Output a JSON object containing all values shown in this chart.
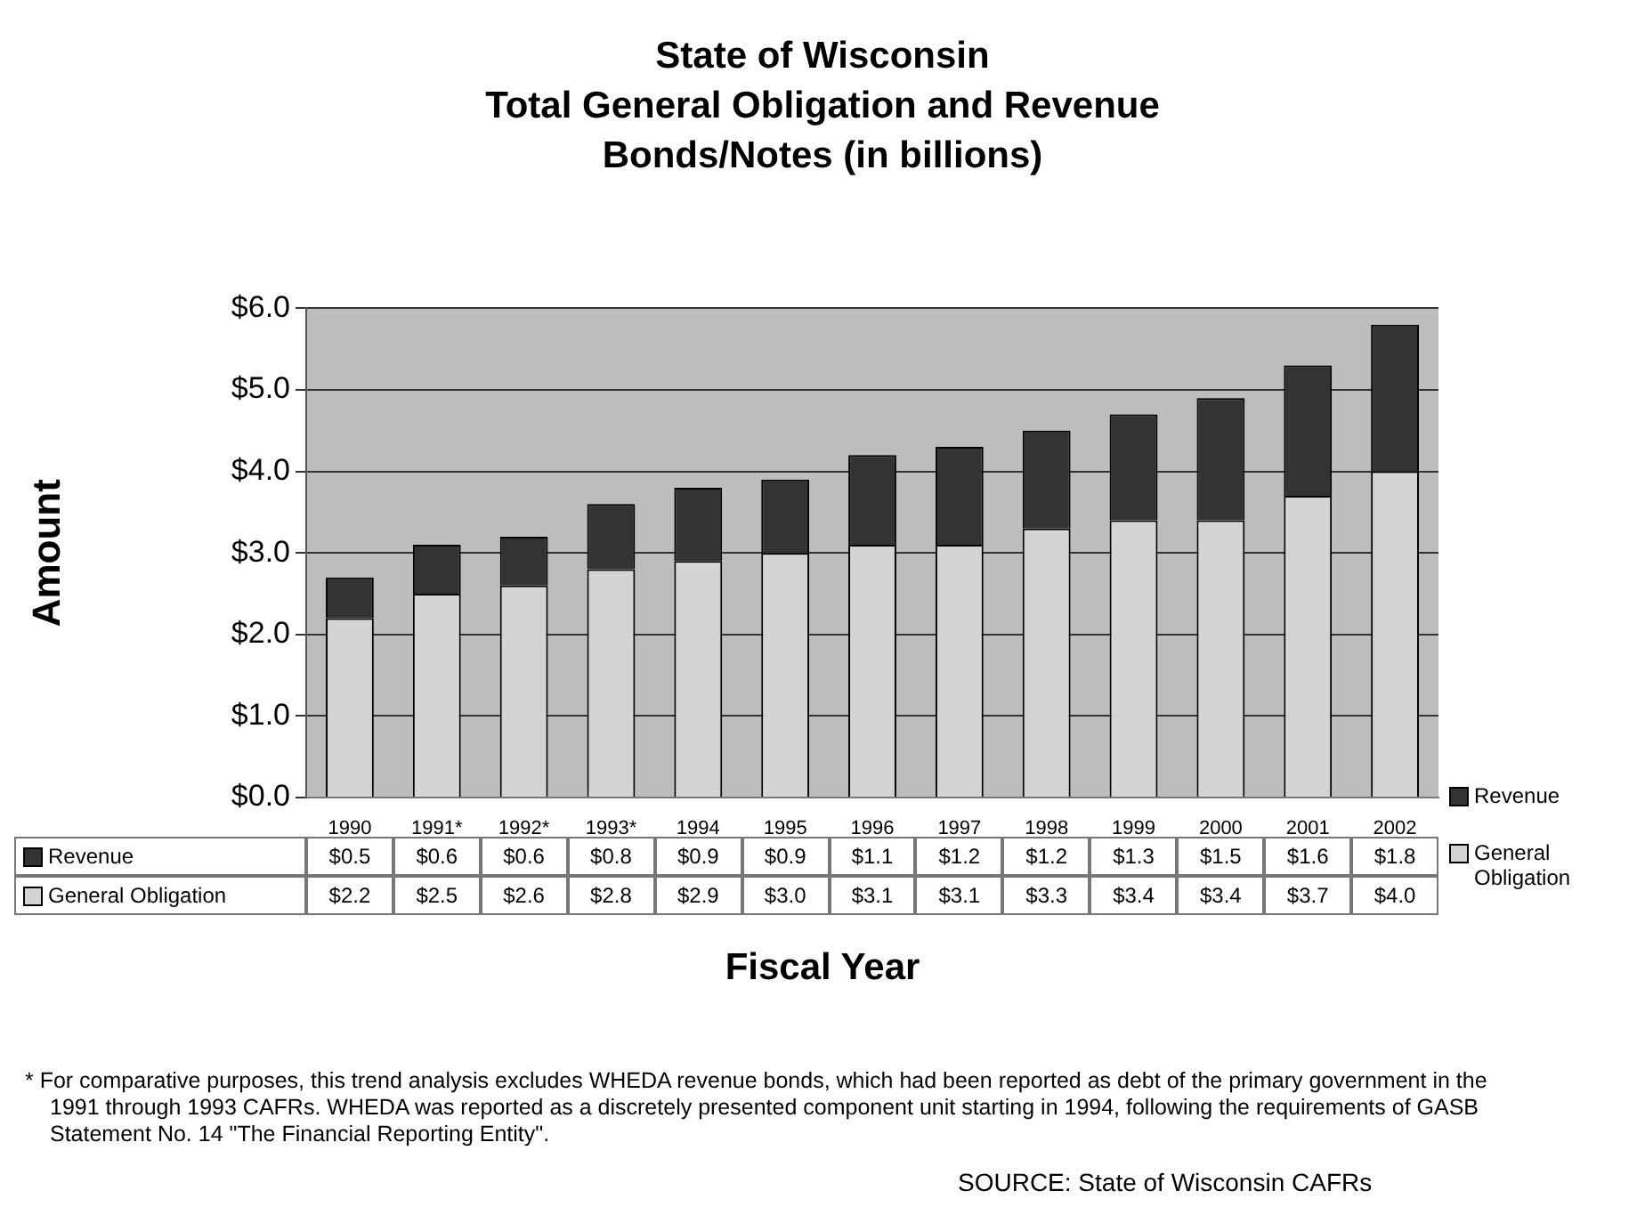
{
  "chart_data": {
    "type": "bar",
    "title": "State of Wisconsin",
    "subtitle": "Total General Obligation and Revenue Bonds/Notes (in billions)",
    "xlabel": "Fiscal Year",
    "ylabel": "Amount",
    "categories": [
      "1990",
      "1991*",
      "1992*",
      "1993*",
      "1994",
      "1995",
      "1996",
      "1997",
      "1998",
      "1999",
      "2000",
      "2001",
      "2002"
    ],
    "stacked": true,
    "series": [
      {
        "name": "General Obligation",
        "color": "#d4d4d4",
        "values": [
          2.2,
          2.5,
          2.6,
          2.8,
          2.9,
          3.0,
          3.1,
          3.1,
          3.3,
          3.4,
          3.4,
          3.7,
          4.0
        ],
        "value_labels": [
          "$2.2",
          "$2.5",
          "$2.6",
          "$2.8",
          "$2.9",
          "$3.0",
          "$3.1",
          "$3.1",
          "$3.3",
          "$3.4",
          "$3.4",
          "$3.7",
          "$4.0"
        ]
      },
      {
        "name": "Revenue",
        "color": "#333333",
        "values": [
          0.5,
          0.6,
          0.6,
          0.8,
          0.9,
          0.9,
          1.1,
          1.2,
          1.2,
          1.3,
          1.5,
          1.6,
          1.8
        ],
        "value_labels": [
          "$0.5",
          "$0.6",
          "$0.6",
          "$0.8",
          "$0.9",
          "$0.9",
          "$1.1",
          "$1.2",
          "$1.2",
          "$1.3",
          "$1.5",
          "$1.6",
          "$1.8"
        ]
      }
    ],
    "ylim": [
      0,
      6
    ],
    "yticks": [
      {
        "value": 0,
        "label": "$0.0"
      },
      {
        "value": 1,
        "label": "$1.0"
      },
      {
        "value": 2,
        "label": "$2.0"
      },
      {
        "value": 3,
        "label": "$3.0"
      },
      {
        "value": 4,
        "label": "$4.0"
      },
      {
        "value": 5,
        "label": "$5.0"
      },
      {
        "value": 6,
        "label": "$6.0"
      }
    ],
    "grid": "y",
    "legend": "right",
    "annotations": [
      "*   For comparative purposes, this trend analysis excludes WHEDA revenue bonds, which had been reported as debt of the primary government in the 1991 through 1993 CAFRs.  WHEDA was reported as a discretely presented component unit starting in 1994, following the requirements of GASB Statement No. 14 \"The Financial Reporting Entity\".",
      "SOURCE: State of Wisconsin CAFRs"
    ]
  }
}
